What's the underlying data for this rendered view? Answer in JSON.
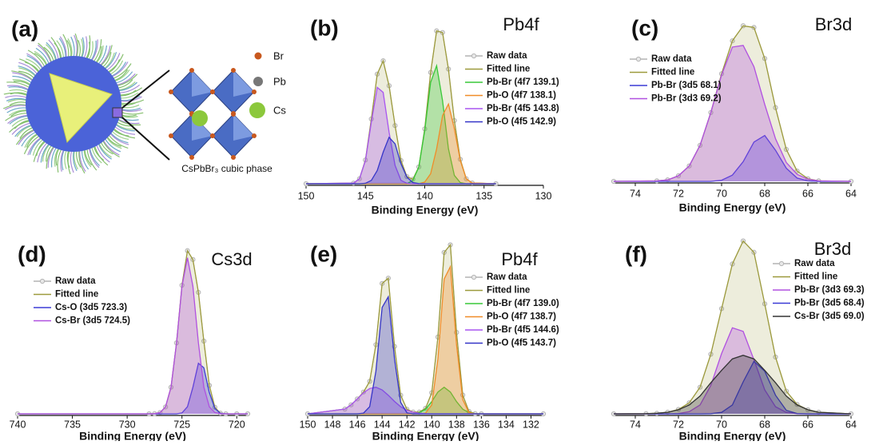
{
  "diagram": {
    "label": "(a)",
    "legend": [
      "Br",
      "Pb",
      "Cs"
    ],
    "caption": "CsPbBr₃ cubic phase"
  },
  "chart_data": [
    {
      "type": "line",
      "label": "(b)",
      "title": "Pb4f",
      "x_label": "Binding Energy (eV)",
      "legend": "upper right",
      "xlim": [
        150,
        130
      ],
      "xticks": [
        150,
        145,
        140,
        135,
        130
      ],
      "ylim": [
        0,
        100
      ],
      "x": [
        150,
        146,
        145.5,
        145,
        144.5,
        144,
        143.5,
        143,
        142.5,
        142,
        141.5,
        141,
        140.5,
        140,
        139.5,
        139,
        138.5,
        138,
        137.5,
        137,
        136.5,
        136,
        134
      ],
      "series": [
        {
          "name": "Raw data",
          "color": "#b4b4b4",
          "values": [
            0,
            0.4,
            3,
            14.3,
            39,
            66,
            74,
            59,
            35,
            14,
            4.3,
            2.7,
            10.1,
            33,
            67,
            92,
            91,
            69,
            38,
            14.7,
            3,
            0.5,
            0
          ]
        },
        {
          "name": "Fitted line",
          "color": "#9c9a3c",
          "values": [
            0,
            0.4,
            3,
            14.3,
            39,
            66,
            74,
            59,
            35,
            14,
            4.3,
            2.7,
            10.1,
            33,
            67,
            92,
            91,
            69,
            38,
            14.7,
            3,
            0.5,
            0
          ]
        },
        {
          "name": "Pb-Br (4f7 139.1)",
          "color": "#38c838",
          "values": [
            0,
            0,
            0,
            0,
            0,
            0,
            0,
            0,
            0,
            0,
            0,
            2,
            10,
            32,
            61,
            71,
            50,
            21,
            5,
            0.7,
            0,
            0,
            0
          ]
        },
        {
          "name": "Pb-O (4f7 138.1)",
          "color": "#f08c28",
          "values": [
            0,
            0,
            0,
            0,
            0,
            0,
            0,
            0,
            0,
            0,
            0,
            0,
            0,
            1,
            6,
            21,
            41,
            48,
            33,
            14,
            3,
            0.5,
            0
          ]
        },
        {
          "name": "Pb-Br (4f5 143.8)",
          "color": "#a855f0",
          "values": [
            0,
            0.4,
            3,
            14,
            37,
            58,
            55,
            31,
            11,
            2,
            0.3,
            0,
            0,
            0,
            0,
            0,
            0,
            0,
            0,
            0,
            0,
            0,
            0
          ]
        },
        {
          "name": "Pb-O (4f5 142.9)",
          "color": "#3535c8",
          "values": [
            0,
            0,
            0,
            0.3,
            2,
            8,
            19,
            28,
            24,
            12,
            4,
            0.7,
            0.1,
            0,
            0,
            0,
            0,
            0,
            0,
            0,
            0,
            0,
            0
          ]
        }
      ]
    },
    {
      "type": "line",
      "label": "(c)",
      "title": "Br3d",
      "x_label": "Binding Energy (eV)",
      "legend": "upper left",
      "xlim": [
        75,
        64
      ],
      "xticks": [
        74,
        72,
        70,
        68,
        66,
        64
      ],
      "ylim": [
        0,
        100
      ],
      "x": [
        75,
        73,
        72.5,
        72,
        71.5,
        71,
        70.5,
        70,
        69.5,
        69,
        68.5,
        68,
        67.5,
        67,
        66.5,
        66,
        65.5,
        64
      ],
      "series": [
        {
          "name": "Raw data",
          "color": "#b4b4b4",
          "values": [
            0,
            0.3,
            0.9,
            3.4,
            9.4,
            22,
            42,
            65.7,
            85.8,
            95,
            94,
            75,
            45,
            19.5,
            6.3,
            1.6,
            0.3,
            0
          ]
        },
        {
          "name": "Fitted line",
          "color": "#9c9a3c",
          "values": [
            0,
            0.3,
            0.9,
            3.4,
            9.4,
            22,
            42,
            65.7,
            85.8,
            95,
            94,
            75,
            45,
            19.5,
            6.3,
            1.6,
            0.3,
            0
          ]
        },
        {
          "name": "Pb-Br (3d5 68.1)",
          "color": "#3b3bd6",
          "values": [
            0,
            0,
            0,
            0,
            0,
            0,
            0,
            0.7,
            3.8,
            12,
            24,
            28,
            19,
            8,
            2,
            0.3,
            0,
            0
          ]
        },
        {
          "name": "Pb-Br (3d3 69.2)",
          "color": "#b050e0",
          "values": [
            0,
            0.3,
            0.9,
            3.4,
            9.4,
            22,
            42,
            65,
            82,
            83,
            70,
            47,
            26,
            11.5,
            4.3,
            1.3,
            0.3,
            0
          ]
        }
      ]
    },
    {
      "type": "line",
      "label": "(d)",
      "title": "Cs3d",
      "x_label": "Binding Energy (eV)",
      "legend": "upper left",
      "xlim": [
        740,
        719
      ],
      "xticks": [
        740,
        735,
        730,
        725,
        720
      ],
      "ylim": [
        0,
        100
      ],
      "x": [
        740,
        728,
        727.5,
        727,
        726.5,
        726,
        725.5,
        725,
        724.5,
        724,
        723.5,
        723,
        722.5,
        722,
        721.5,
        721,
        720,
        719
      ],
      "series": [
        {
          "name": "Raw data",
          "color": "#b4b4b4",
          "values": [
            0,
            0,
            0.1,
            0.7,
            3.9,
            15,
            40,
            72.5,
            92,
            87,
            68.5,
            41,
            16,
            3.7,
            0.4,
            0,
            0,
            0
          ]
        },
        {
          "name": "Fitted line",
          "color": "#9c9a3c",
          "values": [
            0,
            0,
            0.1,
            0.7,
            3.9,
            15,
            40,
            72.5,
            92,
            87,
            68.5,
            41,
            16,
            3.7,
            0.4,
            0,
            0,
            0
          ]
        },
        {
          "name": "Cs-O (3d5 723.3)",
          "color": "#3b3bd6",
          "values": [
            0,
            0,
            0,
            0,
            0,
            0,
            0,
            0.5,
            4,
            15,
            28.5,
            26,
            12,
            3,
            0.3,
            0,
            0,
            0
          ]
        },
        {
          "name": "Cs-Br (3d5 724.5)",
          "color": "#b050e0",
          "values": [
            0,
            0,
            0.1,
            0.7,
            3.9,
            15,
            40,
            72,
            88,
            72,
            40,
            15,
            3.9,
            0.7,
            0.1,
            0,
            0,
            0
          ]
        }
      ]
    },
    {
      "type": "line",
      "label": "(e)",
      "title": "Pb4f",
      "x_label": "Binding Energy (eV)",
      "legend": "upper right",
      "xlim": [
        150,
        131
      ],
      "xticks": [
        150,
        148,
        146,
        144,
        142,
        140,
        138,
        136,
        134,
        132
      ],
      "ylim": [
        0,
        100
      ],
      "x": [
        150,
        147,
        146.5,
        146,
        145.5,
        145,
        144.5,
        144,
        143.5,
        143,
        142.5,
        142,
        141.5,
        141,
        140.5,
        140,
        139.5,
        139,
        138.5,
        138,
        137.5,
        137,
        136.5,
        136,
        131
      ],
      "series": [
        {
          "name": "Raw data",
          "color": "#b4b4b4",
          "values": [
            0,
            2.7,
            5.1,
            8.4,
            12.3,
            18.3,
            39,
            73.5,
            76.5,
            38,
            10.5,
            2.6,
            1,
            1,
            3.1,
            11.9,
            43.3,
            91,
            95.3,
            45.9,
            10.6,
            1.4,
            0.1,
            0,
            0
          ]
        },
        {
          "name": "Fitted line",
          "color": "#9c9a3c",
          "values": [
            0,
            2.7,
            5.1,
            8.4,
            12.3,
            18.3,
            39,
            73.5,
            76.5,
            38,
            10.5,
            2.6,
            1,
            1,
            3.1,
            11.9,
            43.3,
            91,
            95.3,
            45.9,
            10.6,
            1.4,
            0.1,
            0,
            0
          ]
        },
        {
          "name": "Pb-Br (4f7 139.0)",
          "color": "#38c838",
          "values": [
            0,
            0,
            0,
            0,
            0,
            0,
            0,
            0,
            0,
            0,
            0,
            0,
            0.1,
            0.7,
            2.6,
            6.9,
            12.3,
            15,
            12.3,
            6.9,
            2.6,
            0.7,
            0.1,
            0,
            0
          ]
        },
        {
          "name": "Pb-O (4f7 138.7)",
          "color": "#f08c28",
          "values": [
            0,
            0,
            0,
            0,
            0,
            0,
            0,
            0,
            0,
            0,
            0,
            0,
            0,
            0,
            0.4,
            5,
            31,
            76,
            83,
            39,
            8,
            0.7,
            0,
            0,
            0
          ]
        },
        {
          "name": "Pb-Br (4f5 144.6)",
          "color": "#a855f0",
          "values": [
            0,
            2.7,
            5.1,
            8.4,
            11.9,
            14.3,
            15,
            13.5,
            10.5,
            7,
            4,
            2,
            0.9,
            0.3,
            0.1,
            0,
            0,
            0,
            0,
            0,
            0,
            0,
            0,
            0,
            0
          ]
        },
        {
          "name": "Pb-O (4f5 143.7)",
          "color": "#3535c8",
          "values": [
            0,
            0,
            0,
            0,
            0.4,
            4,
            24,
            60,
            66,
            31,
            6.5,
            0.6,
            0,
            0,
            0,
            0,
            0,
            0,
            0,
            0,
            0,
            0,
            0,
            0,
            0
          ]
        }
      ]
    },
    {
      "type": "line",
      "label": "(f)",
      "title": "Br3d",
      "x_label": "Binding Energy (eV)",
      "legend": "upper right",
      "xlim": [
        75,
        64
      ],
      "xticks": [
        74,
        72,
        70,
        68,
        66,
        64
      ],
      "ylim": [
        0,
        100
      ],
      "x": [
        75,
        73.5,
        73,
        72.5,
        72,
        71.5,
        71,
        70.5,
        70,
        69.5,
        69,
        68.5,
        68,
        67.5,
        67,
        66.5,
        66,
        65.5,
        64
      ],
      "series": [
        {
          "name": "Raw data",
          "color": "#b4b4b4",
          "values": [
            0,
            0.1,
            0.3,
            0.9,
            2.5,
            6.2,
            15,
            33.6,
            59.3,
            84.5,
            97.5,
            91.1,
            62,
            32,
            12.8,
            5.3,
            2.3,
            0.9,
            0
          ]
        },
        {
          "name": "Fitted line",
          "color": "#9c9a3c",
          "values": [
            0,
            0.1,
            0.3,
            0.9,
            2.5,
            6.2,
            15,
            33.6,
            59.3,
            84.5,
            97.5,
            91.1,
            62,
            32,
            12.8,
            5.3,
            2.3,
            0.9,
            0
          ]
        },
        {
          "name": "Pb-Br (3d3 69.3)",
          "color": "#b050e0",
          "values": [
            0,
            0,
            0,
            0,
            0.2,
            1.2,
            5,
            16,
            34,
            48.5,
            46.5,
            30.5,
            13.5,
            4,
            0.8,
            0.1,
            0,
            0,
            0
          ]
        },
        {
          "name": "Pb-Br (3d5 68.4)",
          "color": "#3b3bd6",
          "values": [
            0,
            0,
            0,
            0,
            0,
            0,
            0,
            0.1,
            0.8,
            5,
            18,
            29.6,
            24,
            10.5,
            2,
            0.2,
            0,
            0,
            0
          ]
        },
        {
          "name": "Cs-Br (3d5 69.0)",
          "color": "#333333",
          "values": [
            0,
            0.1,
            0.3,
            0.9,
            2.3,
            5,
            10,
            17.5,
            24.5,
            31,
            33,
            31,
            24.5,
            17.5,
            10,
            5,
            2.3,
            0.9,
            0
          ]
        }
      ]
    }
  ]
}
